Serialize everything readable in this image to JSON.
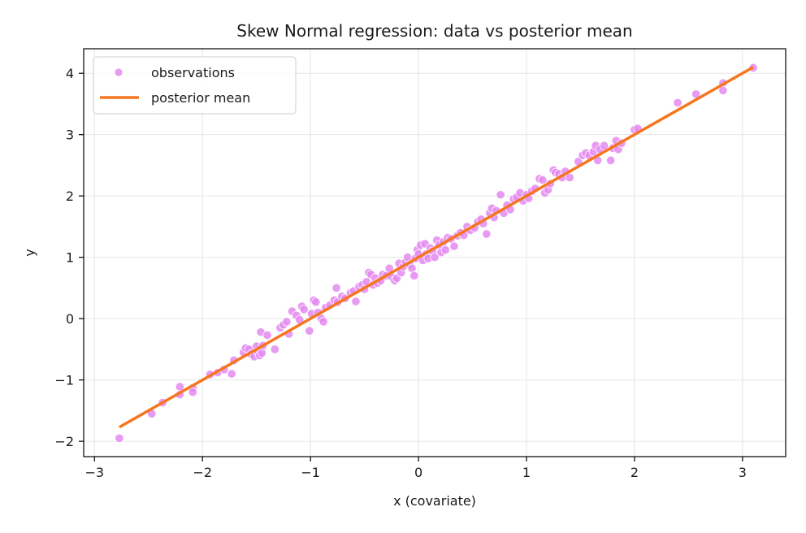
{
  "chart_data": {
    "type": "scatter",
    "title": "Skew Normal regression: data vs posterior mean",
    "xlabel": "x (covariate)",
    "ylabel": "y",
    "xlim": [
      -3.1,
      3.4
    ],
    "ylim": [
      -2.25,
      4.4
    ],
    "xticks": [
      -3,
      -2,
      -1,
      0,
      1,
      2,
      3
    ],
    "yticks": [
      -2,
      -1,
      0,
      1,
      2,
      3,
      4
    ],
    "grid": true,
    "legend_position": "top-left",
    "colors": {
      "observations": "#e48af0",
      "posterior_mean": "#f5761f",
      "grid": "#e6e6e6",
      "axis": "#000000"
    },
    "series": [
      {
        "name": "observations",
        "kind": "scatter",
        "points": [
          [
            -2.77,
            -1.95
          ],
          [
            -2.47,
            -1.55
          ],
          [
            -2.37,
            -1.37
          ],
          [
            -2.21,
            -1.11
          ],
          [
            -2.21,
            -1.24
          ],
          [
            -2.09,
            -1.13
          ],
          [
            -2.09,
            -1.2
          ],
          [
            -1.93,
            -0.91
          ],
          [
            -1.86,
            -0.88
          ],
          [
            -1.8,
            -0.83
          ],
          [
            -1.73,
            -0.9
          ],
          [
            -1.71,
            -0.68
          ],
          [
            -1.62,
            -0.55
          ],
          [
            -1.6,
            -0.48
          ],
          [
            -1.57,
            -0.5
          ],
          [
            -1.55,
            -0.58
          ],
          [
            -1.52,
            -0.62
          ],
          [
            -1.5,
            -0.45
          ],
          [
            -1.49,
            -0.54
          ],
          [
            -1.47,
            -0.6
          ],
          [
            -1.46,
            -0.22
          ],
          [
            -1.45,
            -0.56
          ],
          [
            -1.44,
            -0.44
          ],
          [
            -1.4,
            -0.27
          ],
          [
            -1.33,
            -0.5
          ],
          [
            -1.28,
            -0.15
          ],
          [
            -1.25,
            -0.1
          ],
          [
            -1.22,
            -0.05
          ],
          [
            -1.2,
            -0.25
          ],
          [
            -1.17,
            0.12
          ],
          [
            -1.13,
            0.05
          ],
          [
            -1.1,
            -0.02
          ],
          [
            -1.08,
            0.2
          ],
          [
            -1.06,
            0.15
          ],
          [
            -1.01,
            -0.2
          ],
          [
            -0.99,
            0.08
          ],
          [
            -0.97,
            0.3
          ],
          [
            -0.95,
            0.27
          ],
          [
            -0.93,
            0.1
          ],
          [
            -0.9,
            0.0
          ],
          [
            -0.88,
            -0.05
          ],
          [
            -0.86,
            0.18
          ],
          [
            -0.82,
            0.22
          ],
          [
            -0.78,
            0.3
          ],
          [
            -0.76,
            0.5
          ],
          [
            -0.75,
            0.27
          ],
          [
            -0.71,
            0.36
          ],
          [
            -0.68,
            0.33
          ],
          [
            -0.63,
            0.42
          ],
          [
            -0.6,
            0.45
          ],
          [
            -0.58,
            0.28
          ],
          [
            -0.55,
            0.52
          ],
          [
            -0.52,
            0.55
          ],
          [
            -0.5,
            0.48
          ],
          [
            -0.48,
            0.6
          ],
          [
            -0.46,
            0.75
          ],
          [
            -0.44,
            0.72
          ],
          [
            -0.42,
            0.55
          ],
          [
            -0.4,
            0.66
          ],
          [
            -0.38,
            0.58
          ],
          [
            -0.35,
            0.62
          ],
          [
            -0.33,
            0.72
          ],
          [
            -0.3,
            0.7
          ],
          [
            -0.27,
            0.82
          ],
          [
            -0.25,
            0.68
          ],
          [
            -0.22,
            0.62
          ],
          [
            -0.2,
            0.66
          ],
          [
            -0.18,
            0.9
          ],
          [
            -0.16,
            0.75
          ],
          [
            -0.14,
            0.85
          ],
          [
            -0.12,
            0.92
          ],
          [
            -0.1,
            1.0
          ],
          [
            -0.08,
            0.88
          ],
          [
            -0.06,
            0.82
          ],
          [
            -0.04,
            0.7
          ],
          [
            -0.03,
            0.98
          ],
          [
            -0.01,
            1.12
          ],
          [
            0.0,
            1.05
          ],
          [
            0.02,
            1.2
          ],
          [
            0.04,
            0.95
          ],
          [
            0.06,
            1.22
          ],
          [
            0.07,
            1.05
          ],
          [
            0.09,
            0.98
          ],
          [
            0.11,
            1.15
          ],
          [
            0.13,
            1.1
          ],
          [
            0.15,
            1.0
          ],
          [
            0.17,
            1.28
          ],
          [
            0.19,
            1.2
          ],
          [
            0.21,
            1.08
          ],
          [
            0.23,
            1.25
          ],
          [
            0.25,
            1.12
          ],
          [
            0.27,
            1.32
          ],
          [
            0.3,
            1.3
          ],
          [
            0.33,
            1.18
          ],
          [
            0.36,
            1.35
          ],
          [
            0.39,
            1.4
          ],
          [
            0.42,
            1.36
          ],
          [
            0.45,
            1.5
          ],
          [
            0.48,
            1.44
          ],
          [
            0.52,
            1.48
          ],
          [
            0.55,
            1.58
          ],
          [
            0.58,
            1.62
          ],
          [
            0.6,
            1.55
          ],
          [
            0.63,
            1.38
          ],
          [
            0.66,
            1.72
          ],
          [
            0.68,
            1.8
          ],
          [
            0.7,
            1.65
          ],
          [
            0.72,
            1.76
          ],
          [
            0.76,
            2.02
          ],
          [
            0.79,
            1.72
          ],
          [
            0.82,
            1.85
          ],
          [
            0.85,
            1.78
          ],
          [
            0.88,
            1.95
          ],
          [
            0.91,
            1.98
          ],
          [
            0.94,
            2.05
          ],
          [
            0.97,
            1.92
          ],
          [
            1.0,
            2.02
          ],
          [
            1.02,
            1.96
          ],
          [
            1.05,
            2.08
          ],
          [
            1.08,
            2.12
          ],
          [
            1.12,
            2.28
          ],
          [
            1.15,
            2.26
          ],
          [
            1.17,
            2.05
          ],
          [
            1.2,
            2.1
          ],
          [
            1.22,
            2.2
          ],
          [
            1.25,
            2.42
          ],
          [
            1.27,
            2.38
          ],
          [
            1.3,
            2.36
          ],
          [
            1.33,
            2.3
          ],
          [
            1.36,
            2.4
          ],
          [
            1.4,
            2.3
          ],
          [
            1.48,
            2.56
          ],
          [
            1.52,
            2.66
          ],
          [
            1.55,
            2.7
          ],
          [
            1.58,
            2.66
          ],
          [
            1.62,
            2.72
          ],
          [
            1.64,
            2.82
          ],
          [
            1.66,
            2.58
          ],
          [
            1.68,
            2.76
          ],
          [
            1.72,
            2.82
          ],
          [
            1.78,
            2.58
          ],
          [
            1.8,
            2.78
          ],
          [
            1.83,
            2.9
          ],
          [
            1.85,
            2.76
          ],
          [
            1.88,
            2.86
          ],
          [
            2.0,
            3.08
          ],
          [
            2.03,
            3.1
          ],
          [
            2.4,
            3.52
          ],
          [
            2.57,
            3.66
          ],
          [
            2.82,
            3.84
          ],
          [
            2.82,
            3.72
          ],
          [
            3.1,
            4.09
          ]
        ]
      },
      {
        "name": "posterior mean",
        "kind": "line",
        "intercept": 1.0,
        "slope": 1.0,
        "x_range": [
          -2.77,
          3.1
        ]
      }
    ]
  }
}
